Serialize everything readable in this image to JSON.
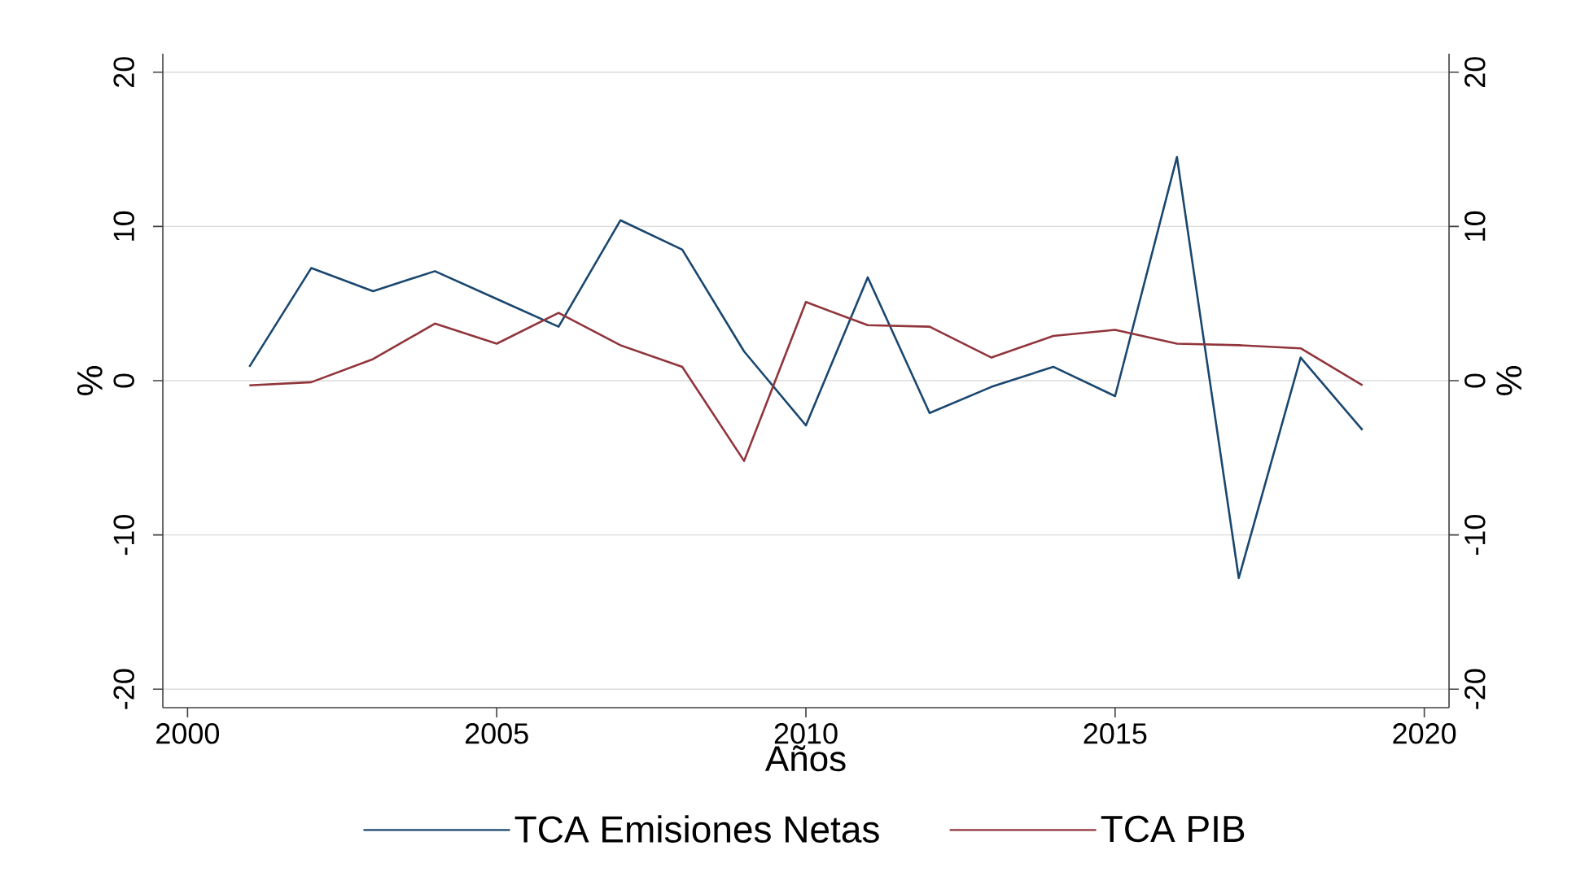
{
  "chart_data": {
    "type": "line",
    "xlabel": "Años",
    "ylabel": "%",
    "y2label": "%",
    "x": [
      2001,
      2002,
      2003,
      2004,
      2005,
      2006,
      2007,
      2008,
      2009,
      2010,
      2011,
      2012,
      2013,
      2014,
      2015,
      2016,
      2017,
      2018,
      2019
    ],
    "series": [
      {
        "name": "TCA Emisiones Netas",
        "color": "#1a476f",
        "values": [
          0.9,
          7.3,
          5.8,
          7.1,
          5.3,
          3.5,
          10.4,
          8.5,
          1.9,
          -2.9,
          6.7,
          -2.1,
          -0.4,
          0.9,
          -1.0,
          14.5,
          -12.8,
          1.5,
          -3.2
        ]
      },
      {
        "name": "TCA PIB",
        "color": "#90353b",
        "values": [
          -0.3,
          -0.1,
          1.4,
          3.7,
          2.4,
          4.4,
          2.3,
          0.9,
          -5.2,
          5.1,
          3.6,
          3.5,
          1.5,
          2.9,
          3.3,
          2.4,
          2.3,
          2.1,
          -0.3
        ]
      }
    ],
    "xlim": [
      1999.6,
      2020.4
    ],
    "xticks": [
      2000,
      2005,
      2010,
      2015,
      2020
    ],
    "ylim": [
      -21.2,
      21.2
    ],
    "yticks": [
      -20,
      -10,
      0,
      10,
      20
    ],
    "y2lim": [
      -21.2,
      21.2
    ],
    "y2ticks": [
      -20,
      -10,
      0,
      10,
      20
    ],
    "grid": "y",
    "legend": "bottom",
    "marker": "none"
  }
}
